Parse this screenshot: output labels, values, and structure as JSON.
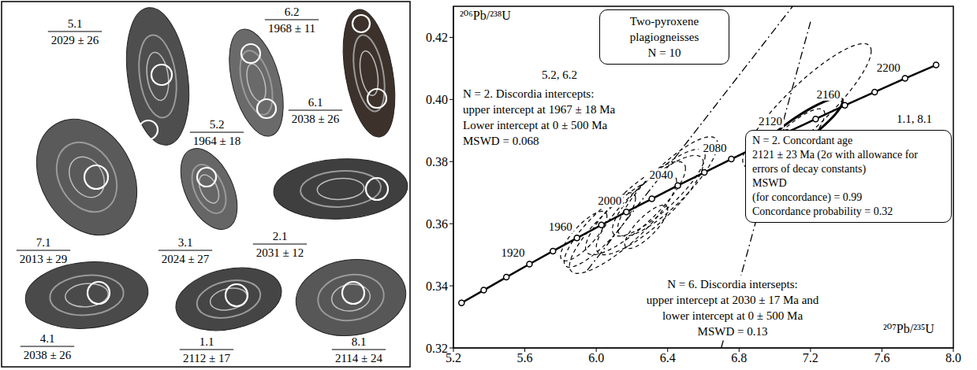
{
  "zircon_panel": {
    "spots": [
      {
        "spot": "5.1",
        "age": "2029 ± 26"
      },
      {
        "spot": "6.2",
        "age": "1968 ± 11"
      },
      {
        "spot": "6.1",
        "age": "2038 ± 26"
      },
      {
        "spot": "5.2",
        "age": "1964 ± 18"
      },
      {
        "spot": "7.1",
        "age": "2013 ± 29"
      },
      {
        "spot": "3.1",
        "age": "2024 ± 27"
      },
      {
        "spot": "2.1",
        "age": "2031 ± 12"
      },
      {
        "spot": "4.1",
        "age": "2038 ± 26"
      },
      {
        "spot": "1.1",
        "age": "2112 ± 17"
      },
      {
        "spot": "8.1",
        "age": "2114 ± 24"
      }
    ]
  },
  "chart_data": {
    "type": "scatter",
    "x_label": "²⁰⁷Pb/²³⁵U",
    "y_label": "²⁰⁶Pb/²³⁸U",
    "xlim": [
      5.2,
      8.0
    ],
    "ylim": [
      0.32,
      0.43
    ],
    "xticks": [
      5.2,
      5.6,
      {
        "value": 6.0,
        "label": "6.0"
      },
      6.4,
      6.8,
      7.2,
      7.6,
      {
        "value": 8.0,
        "label": "8.0"
      }
    ],
    "yticks": [
      0.32,
      0.34,
      0.36,
      0.38,
      {
        "value": 0.4,
        "label": "0.40"
      },
      0.42
    ],
    "concordia": {
      "color": "#000000",
      "marker": "circle",
      "line_style": "solid",
      "x": [
        5.2455,
        5.3698,
        5.4965,
        5.6257,
        5.7575,
        5.8919,
        6.029,
        6.1688,
        6.3114,
        6.4568,
        6.6052,
        6.7565,
        6.9108,
        7.0682,
        7.2287,
        7.3924,
        7.5593,
        7.7296,
        7.9033
      ],
      "y": [
        0.3345,
        0.3386,
        0.3428,
        0.347,
        0.3512,
        0.3554,
        0.3596,
        0.3638,
        0.368,
        0.3723,
        0.3765,
        0.3808,
        0.3851,
        0.3894,
        0.3937,
        0.3981,
        0.4024,
        0.4068,
        0.4111
      ],
      "age_labels": [
        null,
        null,
        null,
        1920,
        null,
        1960,
        null,
        2000,
        null,
        2040,
        null,
        2080,
        null,
        2120,
        null,
        2160,
        null,
        2200,
        null
      ]
    },
    "ellipses": [
      {
        "x": 6.4,
        "y": 0.372,
        "x_err": 0.28,
        "y_err": 0.016,
        "rho": 0.85,
        "line_style": "dashed"
      },
      {
        "x": 5.93,
        "y": 0.356,
        "x_err": 0.13,
        "y_err": 0.008,
        "rho": 0.8,
        "line_style": "dashed"
      },
      {
        "x": 6.3,
        "y": 0.366,
        "x_err": 0.3,
        "y_err": 0.016,
        "rho": 0.85,
        "line_style": "dashed"
      },
      {
        "x": 6.02,
        "y": 0.358,
        "x_err": 0.2,
        "y_err": 0.012,
        "rho": 0.85,
        "line_style": "dashed"
      },
      {
        "x": 6.15,
        "y": 0.36,
        "x_err": 0.3,
        "y_err": 0.016,
        "rho": 0.85,
        "line_style": "dashed"
      },
      {
        "x": 6.22,
        "y": 0.365,
        "x_err": 0.28,
        "y_err": 0.015,
        "rho": 0.85,
        "line_style": "dashed"
      },
      {
        "x": 6.28,
        "y": 0.359,
        "x_err": 0.12,
        "y_err": 0.007,
        "rho": 0.8,
        "line_style": "dashed"
      },
      {
        "x": 6.35,
        "y": 0.37,
        "x_err": 0.26,
        "y_err": 0.014,
        "rho": 0.85,
        "line_style": "dashed"
      },
      {
        "x": 7.08,
        "y": 0.386,
        "x_err": 0.2,
        "y_err": 0.011,
        "rho": 0.85,
        "line_style": "dashed"
      },
      {
        "x": 7.18,
        "y": 0.398,
        "x_err": 0.36,
        "y_err": 0.02,
        "rho": 0.88,
        "line_style": "dashed"
      },
      {
        "x": 7.12,
        "y": 0.3895,
        "x_err": 0.26,
        "y_err": 0.011,
        "rho": 0.9,
        "line_style": "solid"
      }
    ],
    "discordia_lines": [
      {
        "x": [
          5.95,
          7.1
        ],
        "y": [
          0.345,
          0.43
        ],
        "line_style": "dashdot"
      },
      {
        "x": [
          6.7,
          7.2
        ],
        "y": [
          0.32,
          0.425
        ],
        "line_style": "dashdot"
      }
    ],
    "annotations": [
      {
        "lines": [
          "Two-pyroxene",
          "plagiogneisses",
          "N = 10"
        ]
      },
      {
        "lines": [
          "5.2, 6.2"
        ]
      },
      {
        "lines": [
          "N = 2. Discordia intercepts:",
          "upper intercept at 1967 ± 18 Ma",
          "Lower intercept at 0 ± 500 Ma",
          "MSWD = 0.068"
        ]
      },
      {
        "lines": [
          "1.1, 8.1"
        ]
      },
      {
        "lines": [
          "N = 2. Concordant age",
          "2121 ± 23 Ma (2σ with allowance for",
          "errors of decay constants)",
          "MSWD",
          "(for concordance) = 0.99",
          "Concordance probability = 0.32"
        ]
      },
      {
        "lines": [
          "N = 6. Discordia intersepts:",
          "upper intercept at 2030 ± 17 Ma and",
          "lower intercept at 0 ± 500 Ma",
          "MSWD = 0.13"
        ]
      }
    ]
  }
}
